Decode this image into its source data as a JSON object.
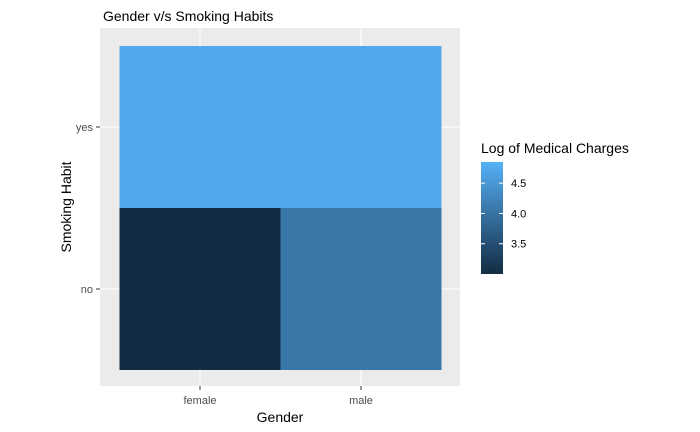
{
  "chart_data": {
    "type": "heatmap",
    "title": "Gender v/s Smoking Habits",
    "xlabel": "Gender",
    "ylabel": "Smoking Habit",
    "x_categories": [
      "female",
      "male"
    ],
    "y_categories": [
      "no",
      "yes"
    ],
    "cells": [
      {
        "x": "female",
        "y": "no",
        "value": 3.0
      },
      {
        "x": "male",
        "y": "no",
        "value": 4.05
      },
      {
        "x": "female",
        "y": "yes",
        "value": 4.72
      },
      {
        "x": "male",
        "y": "yes",
        "value": 4.72
      }
    ],
    "legend": {
      "title": "Log of Medical Charges",
      "ticks": [
        3.5,
        4.0,
        4.5
      ],
      "tick_labels": [
        "3.5",
        "4.0",
        "4.5"
      ],
      "range": [
        3.0,
        4.85
      ],
      "low_color": "#132B43",
      "high_color": "#56B1F7",
      "placement": "right"
    },
    "panel_background": "#ebebeb",
    "grid": true
  }
}
